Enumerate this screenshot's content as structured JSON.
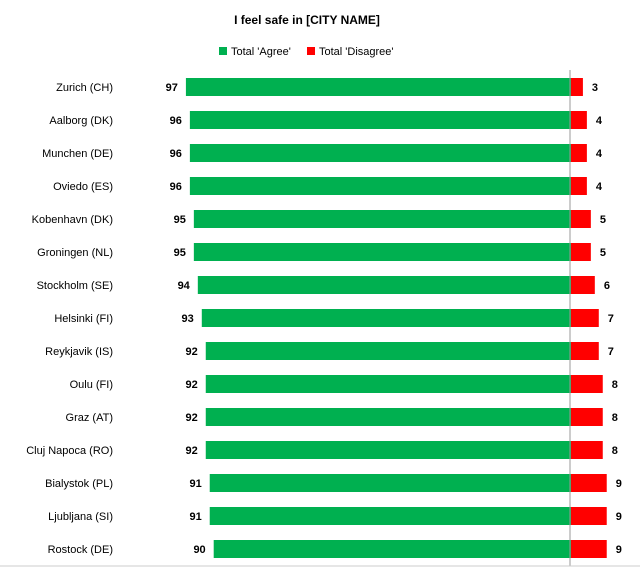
{
  "chart_data": {
    "type": "bar",
    "orientation": "horizontal",
    "stacked": "diverging",
    "title": "I feel safe in [CITY NAME]",
    "legend_position": "top",
    "categories": [
      "Zurich (CH)",
      "Aalborg (DK)",
      "Munchen (DE)",
      "Oviedo (ES)",
      "Kobenhavn (DK)",
      "Groningen (NL)",
      "Stockholm (SE)",
      "Helsinki (FI)",
      "Reykjavik (IS)",
      "Oulu (FI)",
      "Graz (AT)",
      "Cluj Napoca (RO)",
      "Bialystok (PL)",
      "Ljubljana (SI)",
      "Rostock (DE)"
    ],
    "series": [
      {
        "name": "Total 'Agree'",
        "color": "#00b050",
        "values": [
          97,
          96,
          96,
          96,
          95,
          95,
          94,
          93,
          92,
          92,
          92,
          92,
          91,
          91,
          90
        ]
      },
      {
        "name": "Total 'Disagree'",
        "color": "#ff0000",
        "values": [
          3,
          4,
          4,
          4,
          5,
          5,
          6,
          7,
          7,
          8,
          8,
          8,
          9,
          9,
          9
        ]
      }
    ],
    "grid": false
  }
}
